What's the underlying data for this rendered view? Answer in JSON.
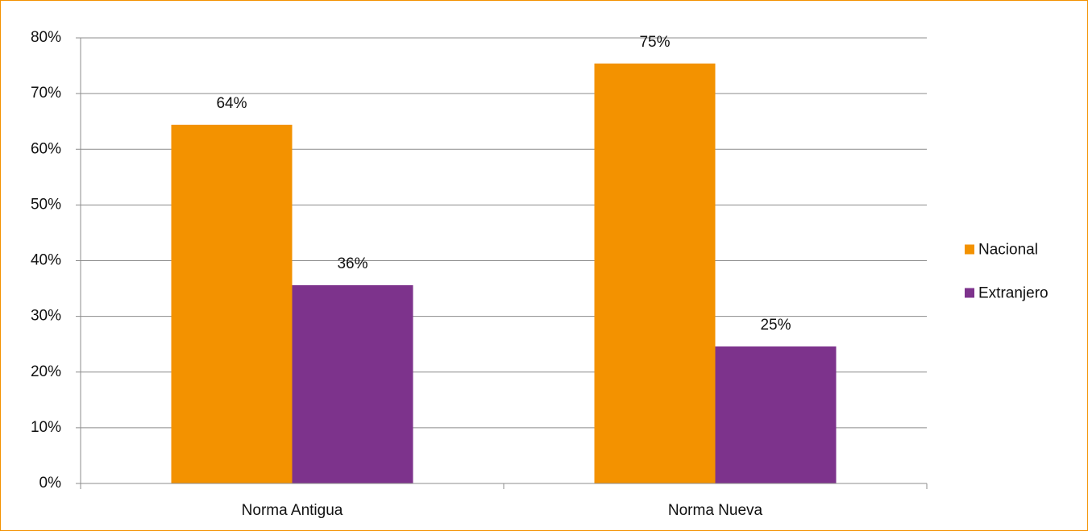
{
  "chart_data": {
    "type": "bar",
    "categories": [
      "Norma Antigua",
      "Norma Nueva"
    ],
    "series": [
      {
        "name": "Nacional",
        "color": "#f39200",
        "values": [
          64.4,
          75.4
        ],
        "value_labels": [
          "64%",
          "75%"
        ]
      },
      {
        "name": "Extranjero",
        "color": "#7d338c",
        "values": [
          35.6,
          24.6
        ],
        "value_labels": [
          "36%",
          "25%"
        ]
      }
    ],
    "ylim": [
      0,
      80
    ],
    "yticks": [
      {
        "value": 0,
        "label": "0%"
      },
      {
        "value": 10,
        "label": "10%"
      },
      {
        "value": 20,
        "label": "20%"
      },
      {
        "value": 30,
        "label": "30%"
      },
      {
        "value": 40,
        "label": "40%"
      },
      {
        "value": 50,
        "label": "50%"
      },
      {
        "value": 60,
        "label": "60%"
      },
      {
        "value": 70,
        "label": "70%"
      },
      {
        "value": 80,
        "label": "80%"
      }
    ],
    "grid": true,
    "legend": "right"
  }
}
